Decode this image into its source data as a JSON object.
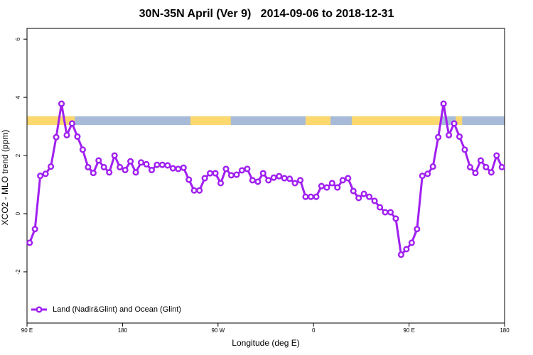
{
  "chart_data": {
    "type": "line",
    "title": "30N-35N April (Ver 9)   2014-09-06 to 2018-12-31",
    "x_label": "Longitude (deg E)",
    "y_label": "XCO2 - MLO trend (ppm)",
    "xlim": [
      90,
      540
    ],
    "ylim": [
      -3.76,
      6.37
    ],
    "xticks": [
      {
        "value": 90,
        "label": "90 E"
      },
      180,
      {
        "value": 270,
        "label": "90 W"
      },
      {
        "value": 360,
        "label": "0"
      },
      {
        "value": 450,
        "label": "90 E"
      },
      {
        "value": 540,
        "label": "180"
      }
    ],
    "yticks": [
      -2,
      0,
      2,
      4,
      6
    ],
    "legend": "bottom-left",
    "surface_band": {
      "ylim": [
        3.05,
        3.35
      ],
      "ocean_color": "#a7bbd9",
      "land_color": "#fdd86f",
      "land_ranges": [
        [
          90,
          135
        ],
        [
          244,
          282
        ],
        [
          352.5,
          376
        ],
        [
          396,
          480
        ],
        [
          494,
          500
        ]
      ]
    },
    "x": [
      92.5,
      97.5,
      102.5,
      107.5,
      112.5,
      117.5,
      122.5,
      127.5,
      132.5,
      137.5,
      142.5,
      147.5,
      152.5,
      157.5,
      162.5,
      167.5,
      172.5,
      177.5,
      182.5,
      187.5,
      192.5,
      197.5,
      202.5,
      207.5,
      212.5,
      217.5,
      222.5,
      227.5,
      232.5,
      237.5,
      242.5,
      247.5,
      252.5,
      257.5,
      262.5,
      267.5,
      272.5,
      277.5,
      282.5,
      287.5,
      292.5,
      297.5,
      302.5,
      307.5,
      312.5,
      317.5,
      322.5,
      327.5,
      332.5,
      337.5,
      342.5,
      347.5,
      352.5,
      357.5,
      362.5,
      367.5,
      372.5,
      377.5,
      382.5,
      387.5,
      392.5,
      397.5,
      402.5,
      407.5,
      412.5,
      417.5,
      422.5,
      427.5,
      432.5,
      437.5,
      442.5,
      447.5,
      452.5,
      457.5,
      462.5,
      467.5,
      472.5,
      477.5,
      482.5,
      487.5,
      492.5,
      497.5,
      502.5,
      507.5,
      512.5,
      517.5,
      522.5,
      527.5,
      532.5,
      537.5
    ],
    "series": [
      {
        "name": "Land (Nadir&Glint) and Ocean (Glint)",
        "color": "#a020f0",
        "values": [
          -1.0,
          -0.53,
          1.3,
          1.37,
          1.62,
          2.63,
          3.78,
          2.7,
          3.1,
          2.65,
          2.2,
          1.6,
          1.4,
          1.83,
          1.6,
          1.42,
          2.0,
          1.6,
          1.5,
          1.8,
          1.42,
          1.76,
          1.7,
          1.5,
          1.68,
          1.68,
          1.66,
          1.56,
          1.54,
          1.58,
          1.17,
          0.8,
          0.8,
          1.22,
          1.39,
          1.39,
          1.05,
          1.54,
          1.32,
          1.34,
          1.49,
          1.54,
          1.15,
          1.1,
          1.39,
          1.15,
          1.24,
          1.29,
          1.22,
          1.2,
          1.05,
          1.15,
          0.58,
          0.58,
          0.58,
          0.95,
          0.9,
          1.05,
          0.9,
          1.15,
          1.22,
          0.78,
          0.54,
          0.68,
          0.58,
          0.44,
          0.22,
          0.05,
          0.05,
          -0.17,
          -1.41,
          -1.22,
          -1.0,
          -0.53,
          1.3,
          1.37,
          1.62,
          2.63,
          3.78,
          2.7,
          3.1,
          2.65,
          2.2,
          1.6,
          1.4,
          1.83,
          1.6,
          1.42,
          2.0,
          1.6
        ]
      }
    ]
  }
}
